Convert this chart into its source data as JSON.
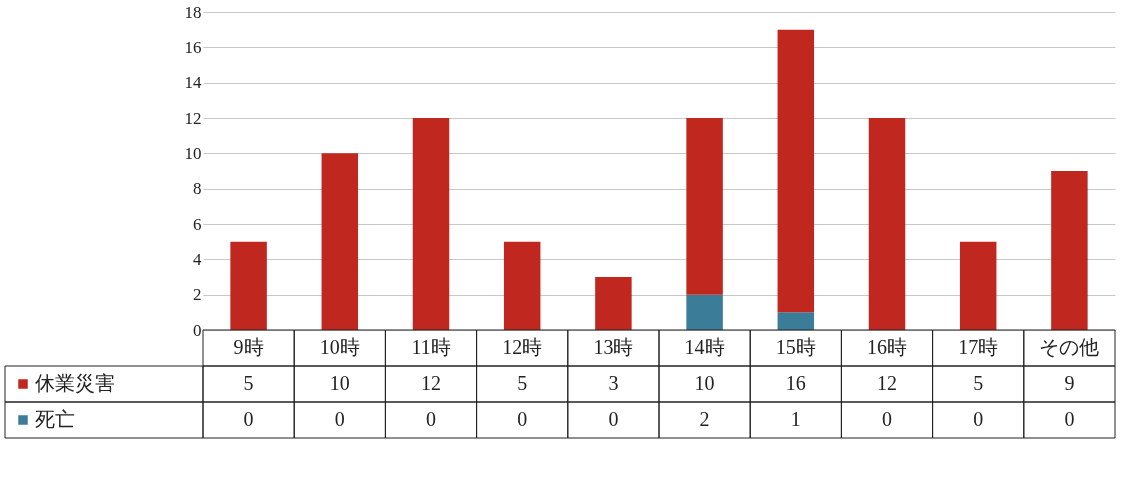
{
  "chart_data": {
    "type": "bar",
    "stacked": true,
    "categories": [
      "9時",
      "10時",
      "11時",
      "12時",
      "13時",
      "14時",
      "15時",
      "16時",
      "17時",
      "その他"
    ],
    "series": [
      {
        "name": "死亡",
        "color": "#3b7c98",
        "values": [
          0,
          0,
          0,
          0,
          0,
          2,
          1,
          0,
          0,
          0
        ]
      },
      {
        "name": "休業災害",
        "color": "#c0281f",
        "values": [
          5,
          10,
          12,
          5,
          3,
          10,
          16,
          12,
          5,
          9
        ]
      }
    ],
    "ylim": [
      0,
      18
    ],
    "yticks": [
      0,
      2,
      4,
      6,
      8,
      10,
      12,
      14,
      16,
      18
    ],
    "grid": "y",
    "legend": "bottom",
    "data_labels": true
  }
}
